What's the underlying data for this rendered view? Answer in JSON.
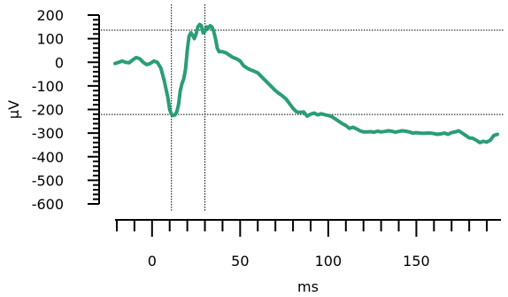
{
  "chart_data": {
    "type": "line",
    "xlabel": "ms",
    "ylabel": "µV",
    "xlim": [
      -21,
      198
    ],
    "ylim": [
      -600,
      200
    ],
    "x_ticks_major": [
      0,
      50,
      100,
      150
    ],
    "x_tick_labels": [
      "0",
      "50",
      "100",
      "150"
    ],
    "x_ticks_minor_step": 10,
    "y_ticks_major": [
      200,
      100,
      0,
      -100,
      -200,
      -300,
      -400,
      -500,
      -600
    ],
    "y_tick_labels": [
      "200",
      "100",
      "0",
      "-100",
      "-200",
      "-300",
      "-400",
      "-500",
      "-600"
    ],
    "y_ticks_minor_step": 20,
    "line_color": "#2a9d78",
    "cursor_color": "#000000",
    "cursors": {
      "vertical": [
        11,
        30
      ],
      "horizontal": [
        136,
        -221
      ]
    },
    "series": [
      {
        "x": [
          -21,
          -19,
          -17,
          -15,
          -13,
          -11,
          -9,
          -7,
          -5,
          -3,
          -1,
          1,
          3,
          5,
          7,
          9,
          10,
          11,
          12,
          13,
          14,
          15,
          16,
          17,
          18,
          19,
          20,
          21,
          22,
          23,
          24,
          25,
          26,
          27,
          28,
          29,
          30,
          31,
          32,
          33,
          34,
          35,
          36,
          37,
          38,
          40,
          42,
          44,
          46,
          48,
          50,
          52,
          54,
          56,
          58,
          60,
          62,
          64,
          66,
          68,
          70,
          72,
          74,
          76,
          78,
          80,
          82,
          84,
          86,
          88,
          90,
          92,
          94,
          96,
          98,
          100,
          102,
          104,
          106,
          108,
          110,
          112,
          114,
          116,
          118,
          120,
          122,
          124,
          126,
          128,
          130,
          132,
          134,
          136,
          138,
          140,
          142,
          144,
          146,
          148,
          150,
          152,
          154,
          156,
          158,
          160,
          162,
          164,
          166,
          168,
          170,
          172,
          174,
          176,
          178,
          180,
          182,
          184,
          186,
          188,
          190,
          192,
          194,
          196
        ],
        "y": [
          -5,
          0,
          5,
          0,
          -2,
          10,
          20,
          15,
          0,
          -10,
          -5,
          5,
          0,
          -25,
          -80,
          -150,
          -200,
          -220,
          -225,
          -223,
          -210,
          -180,
          -120,
          -90,
          -70,
          -30,
          50,
          110,
          125,
          115,
          100,
          120,
          150,
          160,
          155,
          125,
          130,
          150,
          145,
          155,
          150,
          130,
          100,
          60,
          45,
          45,
          40,
          30,
          20,
          15,
          5,
          -15,
          -25,
          -32,
          -38,
          -45,
          -60,
          -75,
          -90,
          -105,
          -120,
          -132,
          -142,
          -155,
          -175,
          -195,
          -210,
          -212,
          -210,
          -228,
          -220,
          -215,
          -223,
          -218,
          -222,
          -225,
          -230,
          -240,
          -250,
          -260,
          -268,
          -280,
          -275,
          -282,
          -290,
          -295,
          -295,
          -294,
          -296,
          -292,
          -295,
          -293,
          -290,
          -292,
          -296,
          -293,
          -290,
          -292,
          -295,
          -300,
          -298,
          -300,
          -301,
          -300,
          -300,
          -302,
          -305,
          -303,
          -300,
          -305,
          -298,
          -295,
          -290,
          -300,
          -310,
          -320,
          -322,
          -330,
          -340,
          -335,
          -338,
          -330,
          -310,
          -305
        ]
      }
    ]
  }
}
